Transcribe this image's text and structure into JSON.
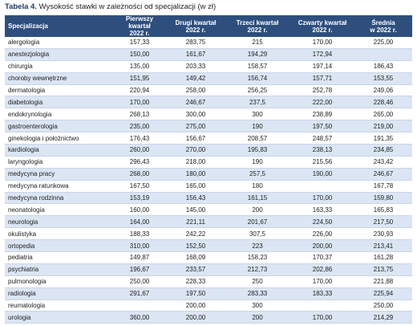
{
  "caption": {
    "label": "Tabela 4.",
    "text": "Wysokość stawki w zależności od specjalizacji (w zł)"
  },
  "table": {
    "headers": [
      "Specjalizacja",
      "Pierwszy kwartał\n2022 r.",
      "Drugi kwartał\n2022 r.",
      "Trzeci kwartał\n2022 r.",
      "Czwarty kwartał\n2022 r.",
      "Średnia\nw 2022 r."
    ],
    "rows": [
      [
        "alergologia",
        "157,33",
        "283,75",
        "215",
        "170,00",
        "225,00"
      ],
      [
        "anestezjologia",
        "150,00",
        "161,67",
        "194,29",
        "172,94",
        null
      ],
      [
        "chirurgia",
        "135,00",
        "203,33",
        "158,57",
        "197,14",
        "186,43"
      ],
      [
        "choroby wewnętrzne",
        "151,95",
        "149,42",
        "156,74",
        "157,71",
        "153,55"
      ],
      [
        "dermatologia",
        "220,94",
        "258,00",
        "256,25",
        "252,78",
        "249,06"
      ],
      [
        "diabetologia",
        "170,00",
        "246,67",
        "237,5",
        "222,00",
        "228,46"
      ],
      [
        "endokrynologia",
        "268,13",
        "300,00",
        "300",
        "238,89",
        "265,00"
      ],
      [
        "gastroenterologia",
        "235,00",
        "275,00",
        "190",
        "197,50",
        "219,00"
      ],
      [
        "ginekologia i położnictwo",
        "176,43",
        "156,67",
        "208,57",
        "248,57",
        "191,35"
      ],
      [
        "kardiologia",
        "260,00",
        "270,00",
        "195,83",
        "238,13",
        "234,85"
      ],
      [
        "laryngologia",
        "296,43",
        "218,00",
        "190",
        "215,56",
        "243,42"
      ],
      [
        "medycyna pracy",
        "268,00",
        "180,00",
        "257,5",
        "190,00",
        "246,67"
      ],
      [
        "medycyna ratunkowa",
        "167,50",
        "165,00",
        "180",
        null,
        "167,78"
      ],
      [
        "medycyna rodzinna",
        "153,19",
        "156,43",
        "161,15",
        "170,00",
        "159,80"
      ],
      [
        "neonatologia",
        "160,00",
        "145,00",
        "200",
        "163,33",
        "165,83"
      ],
      [
        "neurologia",
        "164,00",
        "221,11",
        "201,67",
        "224,50",
        "217,50"
      ],
      [
        "okulistyka",
        "188,33",
        "242,22",
        "307,5",
        "226,00",
        "230,93"
      ],
      [
        "ortopedia",
        "310,00",
        "152,50",
        "223",
        "200,00",
        "213,41"
      ],
      [
        "pediatria",
        "149,87",
        "168,09",
        "158,23",
        "170,37",
        "161,28"
      ],
      [
        "psychiatria",
        "196,67",
        "233,57",
        "212,73",
        "202,86",
        "213,75"
      ],
      [
        "pulmonologia",
        "250,00",
        "228,33",
        "250",
        "170,00",
        "221,88"
      ],
      [
        "radiologia",
        "291,67",
        "197,50",
        "283,33",
        "183,33",
        "225,94"
      ],
      [
        "reumatologia",
        null,
        "200,00",
        "300",
        null,
        "250,00"
      ],
      [
        "urologia",
        "360,00",
        "200,00",
        "200",
        "170,00",
        "214,29"
      ]
    ]
  }
}
